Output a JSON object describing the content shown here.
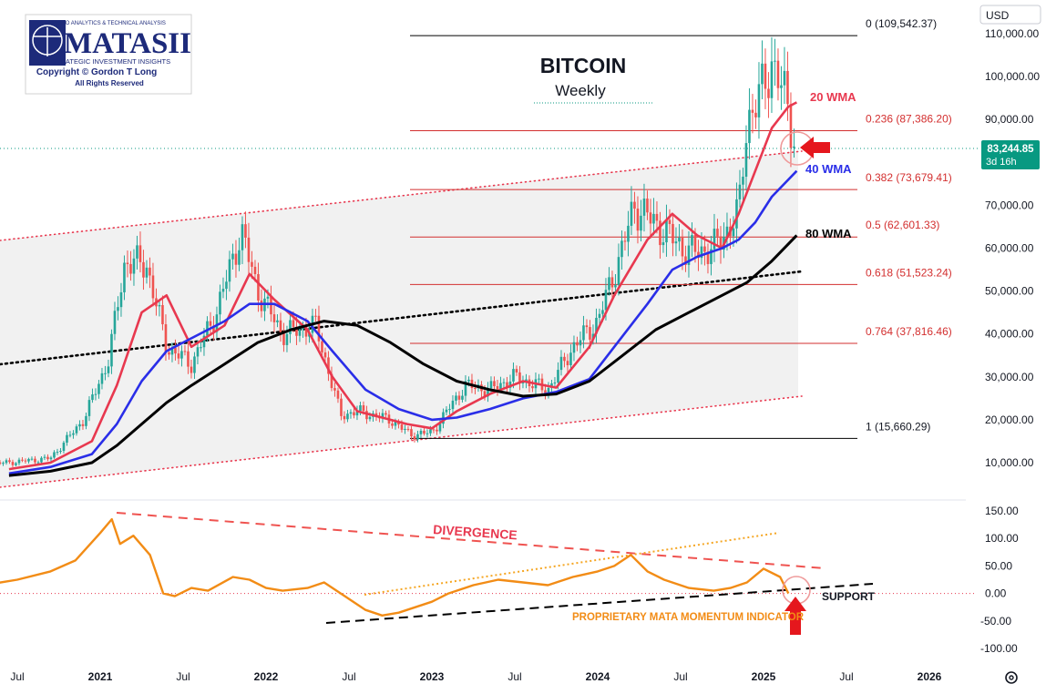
{
  "logo": {
    "tagline": "MACRO ANALYTICS & TECHNICAL ANALYSIS",
    "name": "MATASII",
    "subtitle": "STRATEGIC INVESTMENT INSIGHTS",
    "copyright": "Copyright © Gordon T Long",
    "rights": "All Rights Reserved"
  },
  "currency_button": "USD",
  "settings_icon": "gear-icon",
  "price_tag": {
    "value": "83,244.85",
    "countdown": "3d 16h",
    "color": "#089981"
  },
  "colors": {
    "wma20": "#e8384f",
    "wma40": "#2a2ee8",
    "wma80": "#000000",
    "fib": "#d32f2f",
    "momentum": "#f28c16",
    "up": "#26a69a",
    "down": "#ef5350"
  },
  "chart_data": [
    {
      "type": "candlestick",
      "title": "BITCOIN",
      "subtitle": "Weekly",
      "x_ticks": [
        "Jul",
        "2021",
        "Jul",
        "2022",
        "Jul",
        "2023",
        "Jul",
        "2024",
        "Jul",
        "2025",
        "Jul",
        "2026"
      ],
      "y_ticks": [
        "110,000.00",
        "100,000.00",
        "90,000.00",
        "80,000.00",
        "70,000.00",
        "60,000.00",
        "50,000.00",
        "40,000.00",
        "30,000.00",
        "20,000.00",
        "10,000.00"
      ],
      "ylim": [
        0,
        115000
      ],
      "last_price": 83244.85,
      "fibonacci": [
        {
          "label": "0 (109,542.37)",
          "level": 0,
          "value": 109542.37
        },
        {
          "label": "0.236 (87,386.20)",
          "level": 0.236,
          "value": 87386.2
        },
        {
          "label": "0.382 (73,679.41)",
          "level": 0.382,
          "value": 73679.41
        },
        {
          "label": "0.5 (62,601.33)",
          "level": 0.5,
          "value": 62601.33
        },
        {
          "label": "0.618 (51,523.24)",
          "level": 0.618,
          "value": 51523.24
        },
        {
          "label": "0.764 (37,816.46)",
          "level": 0.764,
          "value": 37816.46
        },
        {
          "label": "1 (15,660.29)",
          "level": 1,
          "value": 15660.29
        }
      ],
      "series": [
        {
          "name": "20 WMA",
          "x": [
            2020.45,
            2020.7,
            2020.95,
            2021.1,
            2021.25,
            2021.4,
            2021.55,
            2021.75,
            2021.9,
            2022.05,
            2022.25,
            2022.4,
            2022.55,
            2022.7,
            2022.85,
            2023.0,
            2023.15,
            2023.35,
            2023.55,
            2023.75,
            2023.95,
            2024.1,
            2024.3,
            2024.45,
            2024.6,
            2024.75,
            2024.85,
            2024.95,
            2025.05,
            2025.15,
            2025.2
          ],
          "values": [
            8500,
            10000,
            15000,
            28000,
            45000,
            49000,
            37000,
            42000,
            54000,
            48000,
            41000,
            30000,
            22000,
            20500,
            19000,
            18000,
            22000,
            26000,
            29000,
            27500,
            37000,
            49000,
            62000,
            68000,
            63000,
            60000,
            68000,
            78000,
            88000,
            93000,
            94000
          ]
        },
        {
          "name": "40 WMA",
          "x": [
            2020.45,
            2020.7,
            2020.95,
            2021.1,
            2021.25,
            2021.4,
            2021.55,
            2021.75,
            2021.9,
            2022.05,
            2022.25,
            2022.4,
            2022.6,
            2022.8,
            2023.0,
            2023.15,
            2023.35,
            2023.55,
            2023.75,
            2023.95,
            2024.1,
            2024.3,
            2024.45,
            2024.6,
            2024.75,
            2024.85,
            2024.95,
            2025.05,
            2025.15,
            2025.2
          ],
          "values": [
            7500,
            9000,
            12000,
            19000,
            29000,
            36000,
            39000,
            43000,
            47000,
            47000,
            43000,
            36000,
            27000,
            22500,
            20000,
            20500,
            22500,
            25000,
            26500,
            29500,
            37000,
            47000,
            55000,
            58000,
            60000,
            62000,
            66000,
            72000,
            76000,
            78000
          ]
        },
        {
          "name": "80 WMA",
          "x": [
            2020.45,
            2020.7,
            2020.95,
            2021.1,
            2021.25,
            2021.4,
            2021.55,
            2021.75,
            2021.95,
            2022.15,
            2022.35,
            2022.55,
            2022.75,
            2022.95,
            2023.15,
            2023.35,
            2023.55,
            2023.75,
            2023.95,
            2024.15,
            2024.35,
            2024.55,
            2024.75,
            2024.9,
            2025.05,
            2025.2
          ],
          "values": [
            7000,
            8000,
            10000,
            14000,
            19000,
            24000,
            28000,
            33000,
            38000,
            41000,
            43000,
            42000,
            38000,
            33000,
            29000,
            27000,
            25500,
            26000,
            29000,
            35000,
            41000,
            45000,
            49000,
            52000,
            57000,
            63000
          ]
        }
      ],
      "annotations": [
        {
          "text": "20 WMA",
          "series": "20 WMA"
        },
        {
          "text": "40 WMA",
          "series": "40 WMA"
        },
        {
          "text": "80 WMA",
          "series": "80 WMA"
        }
      ]
    },
    {
      "type": "line",
      "name": "PROPRIETARY MATA MOMENTUM INDICATOR",
      "y_ticks": [
        "150.00",
        "100.00",
        "50.00",
        "0.00",
        "-50.00",
        "-100.00"
      ],
      "ylim": [
        -120,
        160
      ],
      "x": [
        2020.3,
        2020.5,
        2020.7,
        2020.85,
        2021.0,
        2021.07,
        2021.12,
        2021.2,
        2021.3,
        2021.38,
        2021.45,
        2021.55,
        2021.65,
        2021.8,
        2021.9,
        2022.0,
        2022.1,
        2022.25,
        2022.35,
        2022.5,
        2022.6,
        2022.7,
        2022.8,
        2022.9,
        2023.0,
        2023.1,
        2023.25,
        2023.4,
        2023.55,
        2023.7,
        2023.85,
        2024.0,
        2024.1,
        2024.2,
        2024.3,
        2024.4,
        2024.55,
        2024.7,
        2024.8,
        2024.9,
        2025.0,
        2025.1,
        2025.15
      ],
      "values": [
        15,
        25,
        40,
        60,
        110,
        135,
        90,
        105,
        70,
        0,
        -5,
        10,
        5,
        30,
        25,
        10,
        5,
        10,
        20,
        -10,
        -30,
        -40,
        -35,
        -25,
        -15,
        0,
        15,
        25,
        20,
        15,
        30,
        40,
        50,
        70,
        40,
        25,
        10,
        5,
        10,
        20,
        45,
        30,
        0
      ],
      "annotations": [
        "DIVERGENCE",
        "SUPPORT",
        "PROPRIETARY MATA MOMENTUM INDICATOR"
      ]
    }
  ]
}
